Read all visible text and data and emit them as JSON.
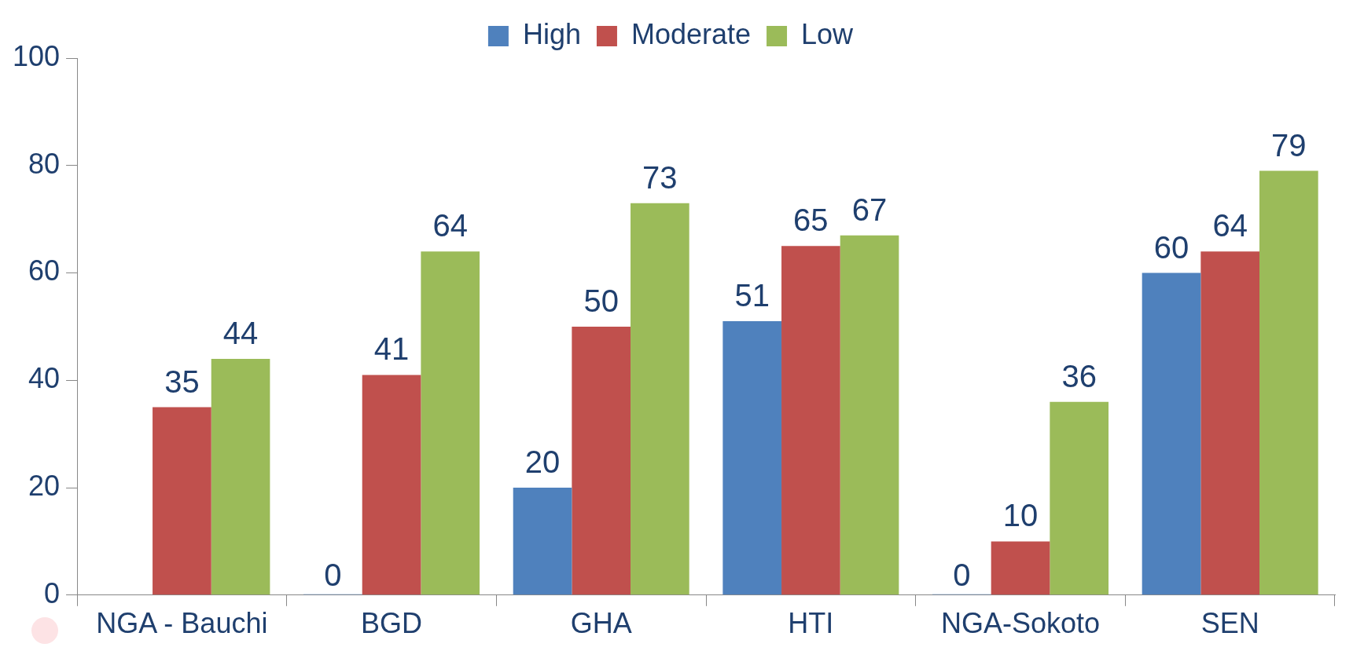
{
  "chart_data": {
    "type": "bar",
    "categories": [
      "NGA - Bauchi",
      "BGD",
      "GHA",
      "HTI",
      "NGA-Sokoto",
      "SEN"
    ],
    "series": [
      {
        "name": "High",
        "color": "#4f81bd",
        "values": [
          null,
          0,
          20,
          51,
          0,
          60
        ]
      },
      {
        "name": "Moderate",
        "color": "#c0504d",
        "values": [
          35,
          41,
          50,
          65,
          10,
          64
        ]
      },
      {
        "name": "Low",
        "color": "#9bbb59",
        "values": [
          44,
          64,
          73,
          67,
          36,
          79
        ]
      }
    ],
    "ylim": [
      0,
      100
    ],
    "yticks": [
      0,
      20,
      40,
      60,
      80,
      100
    ],
    "grid": false,
    "legend": "top",
    "data_labels": true
  }
}
